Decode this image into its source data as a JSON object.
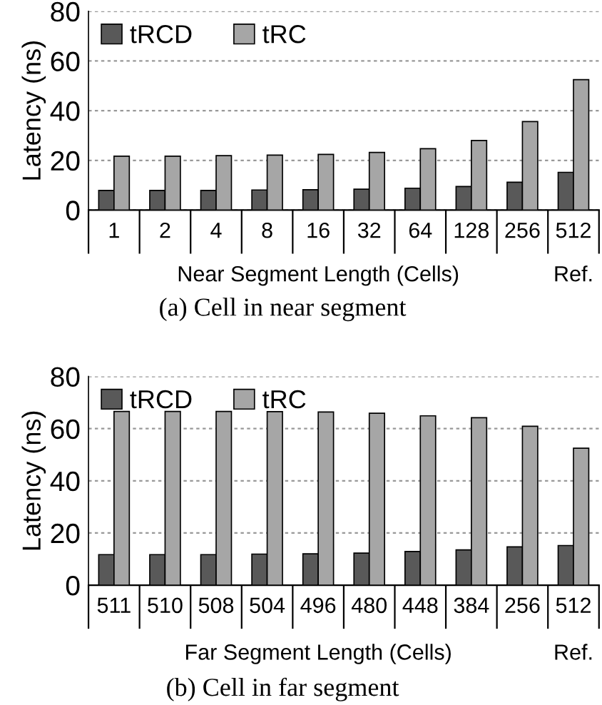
{
  "chart_data": [
    {
      "type": "bar",
      "categories": [
        "1",
        "2",
        "4",
        "8",
        "16",
        "32",
        "64",
        "128",
        "256",
        "512"
      ],
      "ylabel": "Latency (ns)",
      "xlabel": "Near Segment Length (Cells)",
      "series": [
        {
          "name": "tRCD",
          "color": "#595959",
          "values": [
            7.9,
            7.9,
            7.9,
            8.1,
            8.2,
            8.4,
            8.8,
            9.5,
            11.2,
            15.2
          ]
        },
        {
          "name": "tRC",
          "color": "#a6a6a6",
          "values": [
            21.7,
            21.7,
            21.9,
            22.1,
            22.4,
            23.2,
            24.7,
            28.0,
            35.6,
            52.5
          ]
        }
      ],
      "ylim": [
        0,
        80
      ],
      "yticks": [
        0,
        20,
        40,
        60,
        80
      ],
      "grid": "y",
      "legend": "top left",
      "annotations": [
        "Ref.",
        "(a) Cell in near segment"
      ]
    },
    {
      "type": "bar",
      "categories": [
        "511",
        "510",
        "508",
        "504",
        "496",
        "480",
        "448",
        "384",
        "256",
        "512"
      ],
      "ylabel": "Latency (ns)",
      "xlabel": "Far Segment Length (Cells)",
      "series": [
        {
          "name": "tRCD",
          "color": "#595959",
          "values": [
            11.7,
            11.7,
            11.7,
            11.9,
            12.0,
            12.3,
            12.9,
            13.5,
            14.7,
            15.2
          ]
        },
        {
          "name": "tRC",
          "color": "#a6a6a6",
          "values": [
            66.6,
            66.6,
            66.6,
            66.5,
            66.4,
            65.9,
            64.9,
            64.2,
            60.9,
            52.5
          ]
        }
      ],
      "ylim": [
        0,
        80
      ],
      "yticks": [
        0,
        20,
        40,
        60,
        80
      ],
      "grid": "y",
      "legend": "top left",
      "annotations": [
        "Ref.",
        "(b) Cell in far segment"
      ]
    }
  ]
}
